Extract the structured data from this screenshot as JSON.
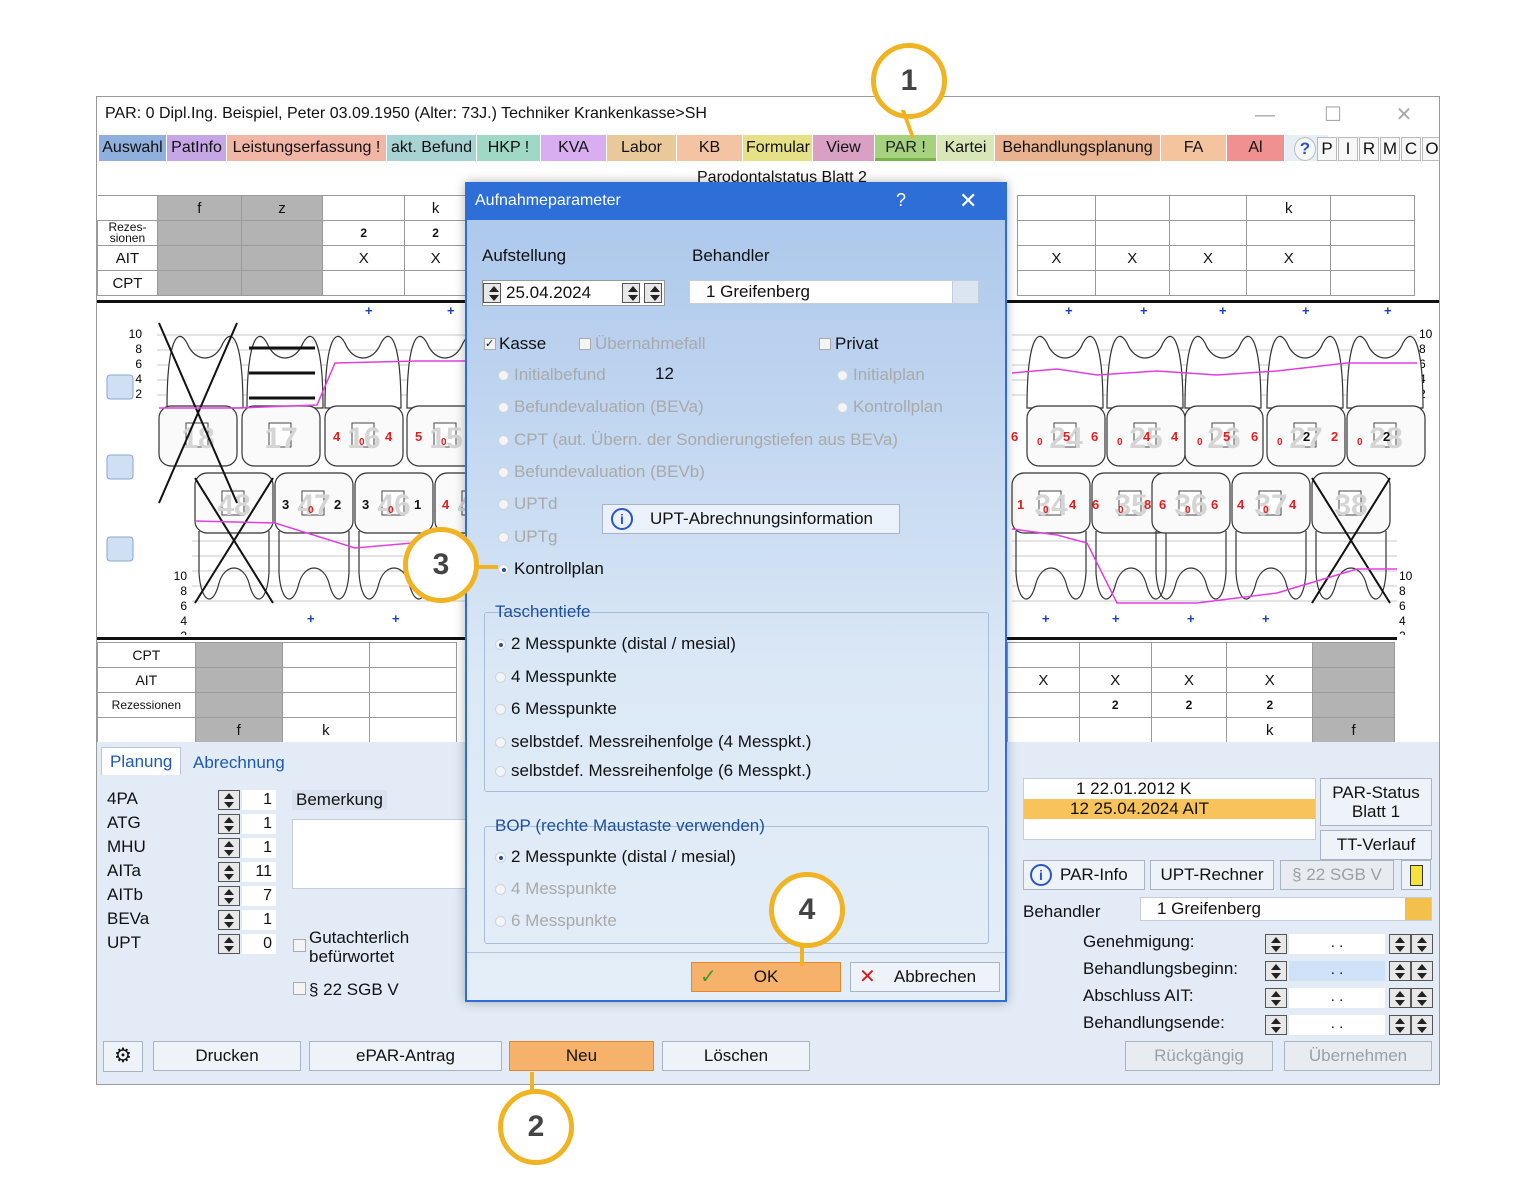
{
  "window": {
    "title": "PAR: 0  Dipl.Ing. Beispiel, Peter  03.09.1950 (Alter: 73J.)  Techniker Krankenkasse>SH"
  },
  "tabs": [
    {
      "label": "Auswahl",
      "color": "#8fb0dd"
    },
    {
      "label": "PatInfo",
      "color": "#c7a6e6"
    },
    {
      "label": "Leistungserfassung !",
      "color": "#f2b6a6"
    },
    {
      "label": "akt. Befund",
      "color": "#a7d3d3"
    },
    {
      "label": "HKP !",
      "color": "#9fd8c4"
    },
    {
      "label": "KVA",
      "color": "#d8aef0"
    },
    {
      "label": "Labor",
      "color": "#e9c99a"
    },
    {
      "label": "KB",
      "color": "#f3c3a4"
    },
    {
      "label": "Formular",
      "color": "#e6e086"
    },
    {
      "label": "View",
      "color": "#d9a0c4"
    },
    {
      "label": "PAR !",
      "color": "#a6d17f"
    },
    {
      "label": "Kartei",
      "color": "#d7e7b7"
    },
    {
      "label": "Behandlungsplanung",
      "color": "#eab38f"
    },
    {
      "label": "FA",
      "color": "#f4c49f"
    },
    {
      "label": "Al",
      "color": "#f09090"
    }
  ],
  "letter_buttons": [
    "P",
    "I",
    "R",
    "M",
    "C",
    "O"
  ],
  "chart_caption": "Parodontalstatus Blatt 2",
  "upper_grid": {
    "row_labels": [
      "Rezes-\nsionen",
      "AIT",
      "CPT"
    ],
    "header_marks": [
      "f",
      "z",
      "k",
      "k"
    ],
    "rez_values": [
      "2",
      "2"
    ],
    "ait_marks": [
      "X",
      "X",
      "X",
      "X",
      "X",
      "X"
    ]
  },
  "scale": [
    "10",
    "8",
    "6",
    "4",
    "2"
  ],
  "tooth_numbers_upper": [
    "18",
    "17",
    "16",
    "15",
    "24",
    "25",
    "26",
    "27",
    "28"
  ],
  "tooth_numbers_lower": [
    "48",
    "47",
    "46",
    "45",
    "34",
    "35",
    "36",
    "37",
    "38"
  ],
  "upper_probe_values": [
    [
      "4",
      "0",
      "4"
    ],
    [
      "5",
      "0"
    ],
    [
      "4"
    ],
    [
      "6",
      "0",
      "5"
    ],
    [
      "6",
      "0",
      "4"
    ],
    [
      "4",
      "0",
      "5"
    ],
    [
      "6",
      "0",
      "2"
    ],
    [
      "2",
      "0",
      "2"
    ]
  ],
  "lower_probe_values": [
    [
      "3",
      "0",
      "2"
    ],
    [
      "3",
      "0",
      "1"
    ],
    [
      "4"
    ],
    [
      "1",
      "0",
      "4"
    ],
    [
      "6",
      "0",
      "8"
    ],
    [
      "6",
      "0",
      "6"
    ],
    [
      "4",
      "0",
      "4"
    ]
  ],
  "lower_grid": {
    "row_labels": [
      "CPT",
      "AIT",
      "Rezessionen"
    ],
    "footer_marks": [
      "f",
      "k",
      "k",
      "f"
    ],
    "ait_marks": [
      "X",
      "X",
      "X",
      "X"
    ],
    "rez_values": [
      "2",
      "2",
      "2"
    ]
  },
  "bottom_tabs": [
    "Planung",
    "Abrechnung"
  ],
  "planning": [
    {
      "label": "4PA",
      "value": "1"
    },
    {
      "label": "ATG",
      "value": "1"
    },
    {
      "label": "MHU",
      "value": "1"
    },
    {
      "label": "AITa",
      "value": "11"
    },
    {
      "label": "AITb",
      "value": "7"
    },
    {
      "label": "BEVa",
      "value": "1"
    },
    {
      "label": "UPT",
      "value": "0"
    }
  ],
  "bemerkung_label": "Bemerkung",
  "gutachter_label": "Gutachterlich\nbefürwortet",
  "sgb_label": "§ 22 SGB V",
  "history": [
    {
      "text": "1 22.01.2012  K"
    },
    {
      "text": "12 25.04.2024  AIT"
    }
  ],
  "right_buttons": {
    "par_status": "PAR-Status\nBlatt 1",
    "tt_verlauf": "TT-Verlauf",
    "par_info": "PAR-Info",
    "upt_rechner": "UPT-Rechner",
    "sgb": "§ 22 SGB V"
  },
  "behandler_label": "Behandler",
  "behandler_value": "1 Greifenberg",
  "dates": [
    {
      "label": "Genehmigung:",
      "value": ".   ."
    },
    {
      "label": "Behandlungsbeginn:",
      "value": ".   ."
    },
    {
      "label": "Abschluss AIT:",
      "value": ".   ."
    },
    {
      "label": "Behandlungsende:",
      "value": ".   ."
    }
  ],
  "bottom_buttons": {
    "drucken": "Drucken",
    "epar": "ePAR-Antrag",
    "neu": "Neu",
    "loeschen": "Löschen",
    "rueckgaengig": "Rückgängig",
    "uebernehmen": "Übernehmen"
  },
  "dialog": {
    "title": "Aufnahmeparameter",
    "help": "?",
    "aufstellung_label": "Aufstellung",
    "aufstellung_date": "25.04.2024",
    "behandler_label": "Behandler",
    "behandler_value": "1 Greifenberg",
    "kasse": "Kasse",
    "uebernahmefall": "Übernahmefall",
    "privat": "Privat",
    "options_left": [
      "Initialbefund",
      "Befundevaluation (BEVa)",
      "CPT (aut. Übern. der Sondierungstiefen aus BEVa)",
      "Befundevaluation (BEVb)",
      "UPTd",
      "UPTg",
      "Kontrollplan"
    ],
    "initialbefund_count": "12",
    "options_right": [
      "Initialplan",
      "Kontrollplan"
    ],
    "upt_button": "UPT-Abrechnungsinformation",
    "taschentiefe_label": "Taschentiefe",
    "taschentiefe_options": [
      "2 Messpunkte (distal / mesial)",
      "4 Messpunkte",
      "6 Messpunkte",
      "selbstdef. Messreihenfolge (4 Messpkt.)",
      "selbstdef. Messreihenfolge (6 Messpkt.)"
    ],
    "bop_label": "BOP (rechte Maustaste verwenden)",
    "bop_options": [
      "2 Messpunkte (distal / mesial)",
      "4 Messpunkte",
      "6 Messpunkte"
    ],
    "ok": "OK",
    "abbrechen": "Abbrechen"
  },
  "callouts": [
    "1",
    "2",
    "3",
    "4"
  ],
  "colors": {
    "accent": "#f0b323",
    "dialog_title": "#2d6fd6",
    "probe_red": "#e02020",
    "probe_line": "#e040e0",
    "neu_button": "#f6b26b",
    "highlight_row": "#f7c35a"
  }
}
